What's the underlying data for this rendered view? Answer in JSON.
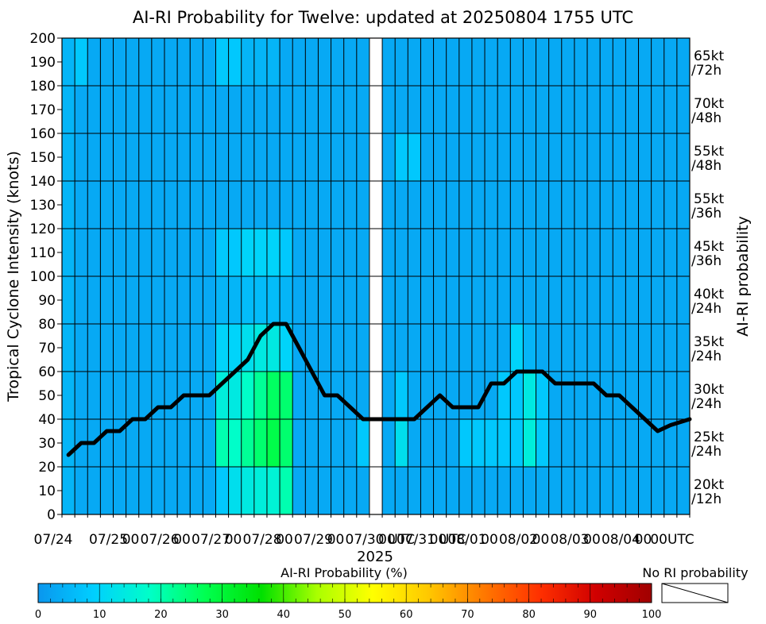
{
  "chart_data": {
    "type": "heatmap",
    "title": "AI-RI Probability for Twelve: updated at 20250804 1755 UTC",
    "ylabel": "Tropical Cyclone Intensity (knots)",
    "right_label": "AI-RI probability",
    "year_label": "2025",
    "ylim": [
      0,
      200
    ],
    "ytick_values": [
      0,
      10,
      20,
      30,
      40,
      50,
      60,
      70,
      80,
      90,
      100,
      110,
      120,
      130,
      140,
      150,
      160,
      170,
      180,
      190,
      200
    ],
    "xtick_labels": [
      {
        "col": 0.5,
        "label": "07/24"
      },
      {
        "col": 4.5,
        "label": "00"
      },
      {
        "col": 4.5,
        "label": "07/25"
      },
      {
        "col": 8.5,
        "label": "00"
      },
      {
        "col": 8.5,
        "label": "07/26"
      },
      {
        "col": 12.5,
        "label": "00"
      },
      {
        "col": 12.5,
        "label": "07/27"
      },
      {
        "col": 16.5,
        "label": "00"
      },
      {
        "col": 16.5,
        "label": "07/28"
      },
      {
        "col": 20.5,
        "label": "00"
      },
      {
        "col": 20.5,
        "label": "07/29"
      },
      {
        "col": 24.5,
        "label": "00"
      },
      {
        "col": 24.5,
        "label": "07/30"
      },
      {
        "col": 26.5,
        "label": "UTC"
      },
      {
        "col": 28.5,
        "label": "00"
      },
      {
        "col": 28.5,
        "label": "07/31"
      },
      {
        "col": 30.5,
        "label": "UTC"
      },
      {
        "col": 32.5,
        "label": "00"
      },
      {
        "col": 32.5,
        "label": "08/01"
      },
      {
        "col": 36.5,
        "label": "00"
      },
      {
        "col": 36.5,
        "label": "08/02"
      },
      {
        "col": 40.5,
        "label": "00"
      },
      {
        "col": 40.5,
        "label": "08/03"
      },
      {
        "col": 44.5,
        "label": "00"
      },
      {
        "col": 44.5,
        "label": "08/04"
      },
      {
        "col": 48.5,
        "label": "00UTC"
      }
    ],
    "thresholds": [
      {
        "label": "20kt /12h"
      },
      {
        "label": "25kt /24h"
      },
      {
        "label": "30kt /24h"
      },
      {
        "label": "35kt /24h"
      },
      {
        "label": "40kt /24h"
      },
      {
        "label": "45kt /36h"
      },
      {
        "label": "55kt /36h"
      },
      {
        "label": "55kt /48h"
      },
      {
        "label": "70kt /48h"
      },
      {
        "label": "65kt /72h"
      }
    ],
    "columns": 49,
    "blank_columns": [
      24
    ],
    "grid": true,
    "prob_map_description": "probability % per column for 10 threshold rows (row 0 = 20kt/12h at bottom)",
    "prob_cols": [
      [
        5,
        5,
        5,
        5,
        5,
        5,
        5,
        5,
        5,
        5
      ],
      [
        3,
        3,
        3,
        3,
        3,
        3,
        3,
        3,
        3,
        8
      ],
      [
        3,
        3,
        3,
        3,
        3,
        3,
        3,
        3,
        3,
        3
      ],
      [
        3,
        3,
        3,
        3,
        3,
        3,
        3,
        3,
        3,
        3
      ],
      [
        3,
        3,
        3,
        3,
        3,
        3,
        3,
        3,
        3,
        3
      ],
      [
        3,
        3,
        3,
        3,
        3,
        3,
        3,
        3,
        3,
        3
      ],
      [
        3,
        3,
        3,
        3,
        3,
        3,
        3,
        3,
        3,
        3
      ],
      [
        3,
        3,
        3,
        3,
        3,
        3,
        3,
        3,
        3,
        3
      ],
      [
        3,
        3,
        3,
        3,
        3,
        3,
        3,
        3,
        3,
        3
      ],
      [
        3,
        3,
        3,
        3,
        3,
        3,
        3,
        3,
        3,
        3
      ],
      [
        3,
        3,
        3,
        3,
        3,
        3,
        3,
        3,
        3,
        3
      ],
      [
        3,
        3,
        3,
        3,
        3,
        3,
        3,
        3,
        3,
        3
      ],
      [
        8,
        20,
        15,
        10,
        5,
        8,
        3,
        3,
        3,
        8
      ],
      [
        12,
        18,
        14,
        10,
        5,
        8,
        3,
        3,
        3,
        8
      ],
      [
        14,
        22,
        18,
        12,
        6,
        10,
        3,
        3,
        3,
        5
      ],
      [
        15,
        25,
        22,
        14,
        6,
        10,
        3,
        3,
        3,
        5
      ],
      [
        16,
        28,
        26,
        14,
        6,
        10,
        3,
        3,
        3,
        5
      ],
      [
        20,
        25,
        25,
        10,
        5,
        8,
        3,
        3,
        3,
        3
      ],
      [
        3,
        3,
        3,
        3,
        3,
        3,
        3,
        3,
        3,
        3
      ],
      [
        3,
        3,
        3,
        3,
        3,
        3,
        3,
        3,
        3,
        3
      ],
      [
        3,
        3,
        3,
        3,
        3,
        3,
        3,
        3,
        3,
        3
      ],
      [
        3,
        3,
        3,
        3,
        3,
        3,
        3,
        3,
        3,
        3
      ],
      [
        3,
        3,
        3,
        3,
        3,
        3,
        3,
        3,
        3,
        3
      ],
      [
        3,
        8,
        3,
        3,
        3,
        3,
        3,
        3,
        3,
        3
      ],
      [
        -1,
        -1,
        -1,
        -1,
        -1,
        -1,
        -1,
        -1,
        -1,
        -1
      ],
      [
        3,
        3,
        3,
        3,
        3,
        3,
        3,
        3,
        3,
        3
      ],
      [
        3,
        12,
        8,
        3,
        3,
        3,
        3,
        8,
        3,
        3
      ],
      [
        3,
        3,
        3,
        3,
        3,
        3,
        3,
        8,
        3,
        3
      ],
      [
        3,
        3,
        3,
        3,
        3,
        3,
        3,
        3,
        3,
        3
      ],
      [
        3,
        3,
        3,
        3,
        3,
        3,
        3,
        3,
        3,
        3
      ],
      [
        3,
        3,
        3,
        3,
        3,
        3,
        3,
        3,
        3,
        3
      ],
      [
        3,
        8,
        3,
        3,
        3,
        3,
        3,
        3,
        3,
        3
      ],
      [
        3,
        8,
        3,
        3,
        3,
        3,
        3,
        3,
        3,
        3
      ],
      [
        3,
        8,
        3,
        3,
        3,
        3,
        3,
        3,
        3,
        3
      ],
      [
        3,
        8,
        8,
        3,
        3,
        3,
        3,
        3,
        3,
        3
      ],
      [
        3,
        8,
        8,
        10,
        3,
        3,
        3,
        3,
        3,
        3
      ],
      [
        3,
        15,
        14,
        5,
        3,
        3,
        3,
        3,
        3,
        3
      ],
      [
        3,
        8,
        8,
        3,
        3,
        3,
        3,
        3,
        3,
        3
      ],
      [
        3,
        3,
        3,
        3,
        3,
        3,
        3,
        3,
        3,
        3
      ],
      [
        3,
        3,
        3,
        3,
        3,
        3,
        3,
        3,
        3,
        3
      ],
      [
        3,
        3,
        3,
        3,
        3,
        3,
        3,
        3,
        3,
        3
      ],
      [
        3,
        3,
        3,
        3,
        3,
        3,
        3,
        3,
        3,
        3
      ],
      [
        3,
        3,
        3,
        3,
        3,
        3,
        3,
        3,
        3,
        3
      ],
      [
        3,
        3,
        3,
        3,
        3,
        3,
        3,
        3,
        3,
        3
      ],
      [
        3,
        3,
        3,
        3,
        3,
        3,
        3,
        3,
        3,
        3
      ],
      [
        3,
        3,
        3,
        3,
        3,
        3,
        3,
        3,
        3,
        3
      ],
      [
        3,
        3,
        3,
        3,
        3,
        3,
        3,
        3,
        3,
        3
      ],
      [
        3,
        3,
        3,
        3,
        3,
        3,
        3,
        3,
        3,
        3
      ],
      [
        3,
        3,
        3,
        3,
        3,
        3,
        3,
        3,
        3,
        3
      ]
    ],
    "series": [
      {
        "values": [
          [
            0.5,
            25
          ],
          [
            1.5,
            30
          ],
          [
            2.5,
            30
          ],
          [
            3.5,
            35
          ],
          [
            4.5,
            35
          ],
          [
            5.5,
            40
          ],
          [
            6.5,
            40
          ],
          [
            7.5,
            45
          ],
          [
            8.5,
            45
          ],
          [
            9.5,
            50
          ],
          [
            10.5,
            50
          ],
          [
            11.5,
            50
          ],
          [
            12.5,
            55
          ],
          [
            13.5,
            60
          ],
          [
            14.5,
            65
          ],
          [
            15.5,
            75
          ],
          [
            16.5,
            80
          ],
          [
            17.5,
            80
          ],
          [
            18.5,
            70
          ],
          [
            19.5,
            60
          ],
          [
            20.5,
            50
          ],
          [
            21.5,
            50
          ],
          [
            22.5,
            45
          ],
          [
            23.5,
            40
          ],
          [
            24.5,
            40
          ],
          [
            25.5,
            40
          ],
          [
            26.5,
            40
          ],
          [
            27.5,
            40
          ],
          [
            28.5,
            45
          ],
          [
            29.5,
            50
          ],
          [
            30.5,
            45
          ],
          [
            31.5,
            45
          ],
          [
            32.5,
            45
          ],
          [
            33.5,
            55
          ],
          [
            34.5,
            55
          ],
          [
            35.5,
            60
          ],
          [
            36.5,
            60
          ],
          [
            37.5,
            60
          ],
          [
            38.5,
            55
          ],
          [
            39.5,
            55
          ],
          [
            40.5,
            55
          ],
          [
            41.5,
            55
          ],
          [
            42.5,
            50
          ],
          [
            43.5,
            50
          ],
          [
            44.5,
            45
          ],
          [
            45.5,
            40
          ],
          [
            46.5,
            35
          ],
          [
            47.5,
            37.5
          ],
          [
            48.5,
            40
          ]
        ]
      }
    ],
    "colorbar": {
      "title": "AI-RI Probability (%)",
      "ticks": [
        "0",
        "10",
        "20",
        "30",
        "40",
        "50",
        "60",
        "70",
        "80",
        "90",
        "100"
      ],
      "no_ri_label": "No RI probability",
      "stops": [
        "#0a96ee",
        "#00cfff",
        "#00ffc8",
        "#00ff50",
        "#00e000",
        "#aaff00",
        "#ffff00",
        "#ffc800",
        "#ff7800",
        "#ff3000",
        "#d00000",
        "#a00000"
      ]
    }
  }
}
